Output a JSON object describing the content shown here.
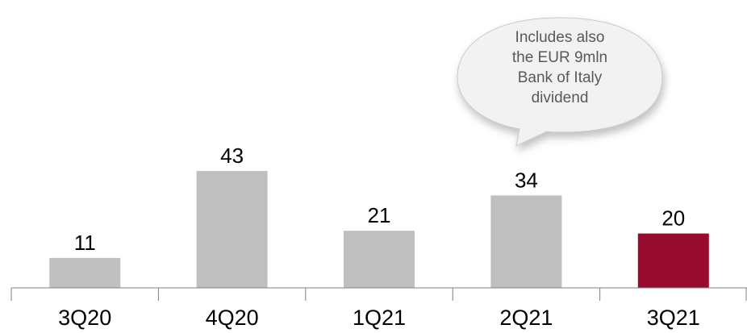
{
  "chart_data": {
    "type": "bar",
    "categories": [
      "3Q20",
      "4Q20",
      "1Q21",
      "2Q21",
      "3Q21"
    ],
    "values": [
      11,
      43,
      21,
      34,
      20
    ],
    "data_labels": [
      "11",
      "43",
      "21",
      "34",
      "20"
    ],
    "title": "",
    "xlabel": "",
    "ylabel": "",
    "ylim": [
      0,
      50
    ],
    "grid": false,
    "legend": "none",
    "colors": {
      "default_bar": "#bfbfbf",
      "highlight_bar": "#960b2e",
      "axis": "#808080",
      "callout_fill": "#f2f2f2",
      "callout_stroke": "#c9c9c9",
      "callout_text": "#595959"
    },
    "highlight_index": 4,
    "annotations": [
      {
        "target_category": "2Q21",
        "lines": [
          "Includes also",
          "the EUR 9mln",
          "Bank of Italy",
          "dividend"
        ]
      }
    ]
  }
}
